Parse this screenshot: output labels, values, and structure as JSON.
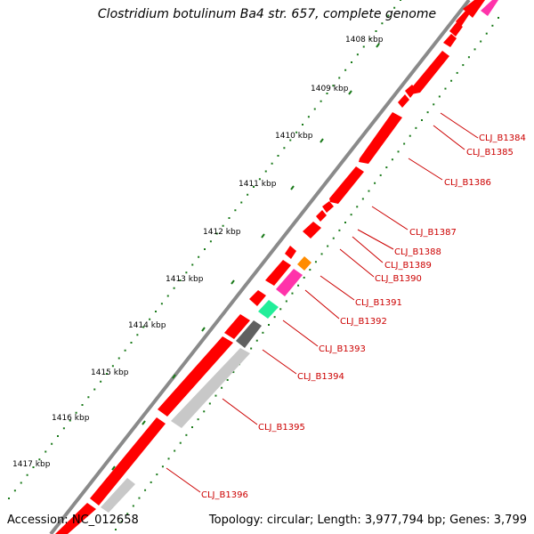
{
  "title": "Clostridium botulinum Ba4 str. 657, complete genome",
  "footer": {
    "accession": "Accession: NC_012658",
    "info": "Topology: circular; Length: 3,977,794 bp; Genes: 3,799"
  },
  "ruler_labels": [
    "1408 kbp",
    "1409 kbp",
    "1410 kbp",
    "1411 kbp",
    "1412 kbp",
    "1413 kbp",
    "1414 kbp",
    "1415 kbp",
    "1416 kbp",
    "1417 kbp"
  ],
  "gene_labels": [
    "CLJ_B1384",
    "CLJ_B1385",
    "CLJ_B1386",
    "CLJ_B1387",
    "CLJ_B1388",
    "CLJ_B1389",
    "CLJ_B1390",
    "CLJ_B1391",
    "CLJ_B1392",
    "CLJ_B1393",
    "CLJ_B1394",
    "CLJ_B1395",
    "CLJ_B1396"
  ],
  "colors": {
    "backbone": "#8a8a8a",
    "gene_red": "#ff0000",
    "gene_pink": "#ff33aa",
    "gene_orange": "#ff8c00",
    "gene_teal": "#22ee99",
    "gene_dark_gray": "#606060",
    "gene_light_gray": "#c8c8c8",
    "tick_green": "#1a7a1a",
    "label_red": "#cc0000"
  }
}
